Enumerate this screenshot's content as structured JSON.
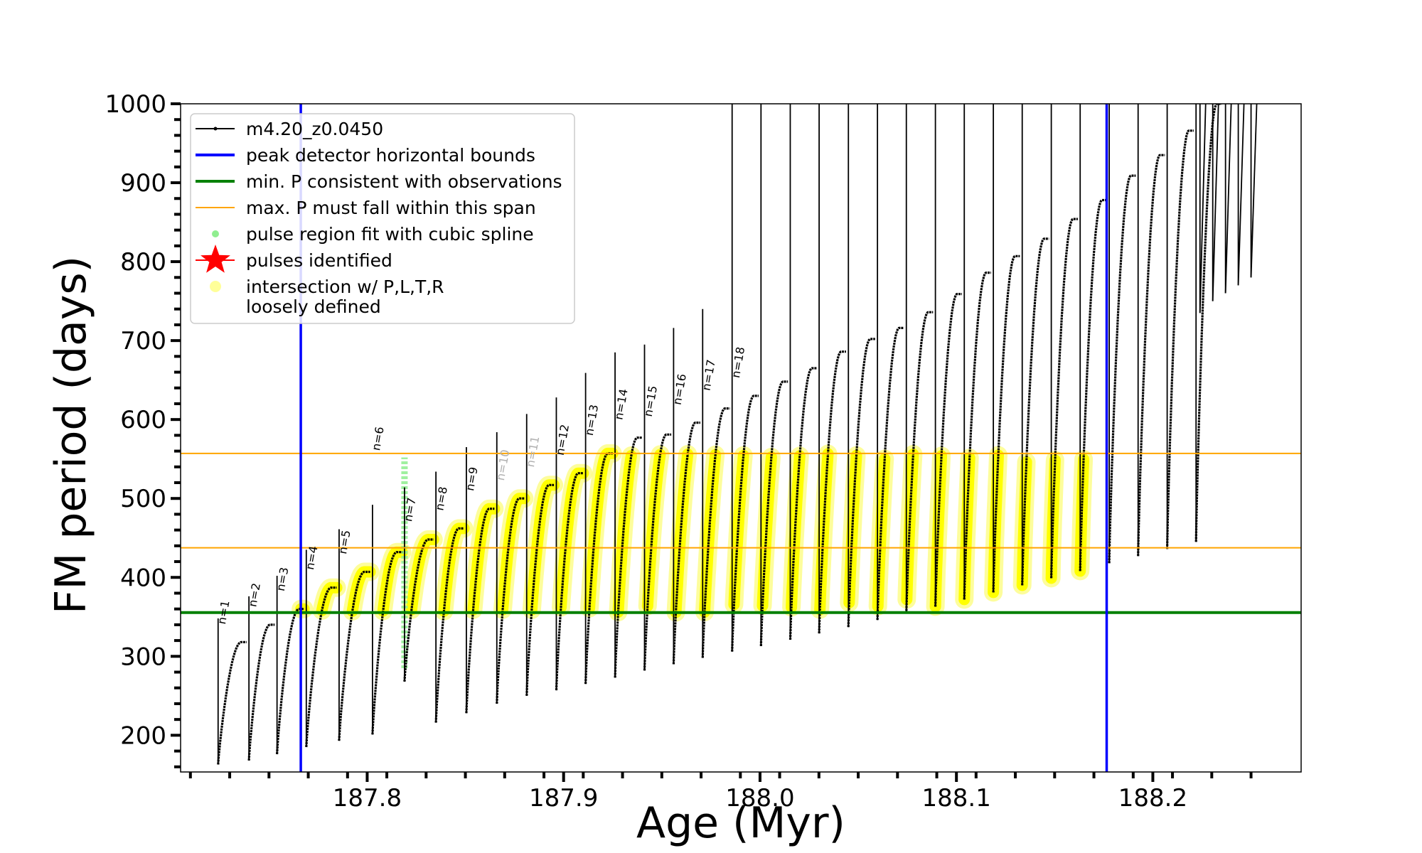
{
  "chart_data": {
    "type": "line",
    "xlabel": "Age (Myr)",
    "ylabel": "FM period (days)",
    "xlim": [
      187.705,
      188.2755
    ],
    "ylim": [
      153.5,
      1000
    ],
    "xticks": [
      187.8,
      187.9,
      188.0,
      188.1,
      188.2
    ],
    "xtick_labels": [
      "187.8",
      "187.9",
      "188.0",
      "188.1",
      "188.2"
    ],
    "yticks": [
      200,
      300,
      400,
      500,
      600,
      700,
      800,
      900,
      1000
    ],
    "ytick_labels": [
      "200",
      "300",
      "400",
      "500",
      "600",
      "700",
      "800",
      "900",
      "1000"
    ],
    "grid": false,
    "legend_position": "top-left",
    "legend": [
      {
        "label": "m4.20_z0.0450",
        "kind": "line-marker",
        "color": "#000000"
      },
      {
        "label": "peak detector horizontal bounds",
        "kind": "line",
        "color": "#0000ff"
      },
      {
        "label": "min. P consistent with observations",
        "kind": "line",
        "color": "#008000"
      },
      {
        "label": "max. P must fall within this span",
        "kind": "thin-line",
        "color": "#ffa500"
      },
      {
        "label": "pulse region fit with cubic spline",
        "kind": "dot",
        "color": "#90ee90"
      },
      {
        "label": "pulses identified",
        "kind": "star",
        "color": "#ff0000"
      },
      {
        "label": "intersection w/ P,L,T,R",
        "label2": "loosely defined",
        "kind": "dot",
        "color": "#ffff99"
      }
    ],
    "vlines": [
      187.7662,
      188.1765
    ],
    "hlines_green": [
      355.5
    ],
    "hlines_orange": [
      437.5,
      557.0
    ],
    "colors": {
      "track": "#000000",
      "vline": "#0000ff",
      "green": "#008000",
      "orange": "#ffa500",
      "yellow": "#ffff00",
      "lightgreen": "#90ee90"
    },
    "pulses": {
      "start": [
        187.7241,
        187.7398,
        187.7541,
        187.769,
        187.7857,
        187.8027,
        187.819,
        187.835,
        187.8505,
        187.866,
        187.8812,
        187.8963,
        187.9112,
        187.9262,
        187.9412,
        187.956,
        187.9708,
        187.9858,
        188.0005,
        188.0154,
        188.0301,
        188.045,
        188.0598,
        188.0745,
        188.0893,
        188.104,
        188.1188,
        188.1335,
        188.1483,
        188.163,
        188.1778,
        188.1925,
        188.2073,
        188.222
      ],
      "minP": [
        163,
        168,
        176,
        185,
        193,
        201,
        268,
        216,
        228,
        240,
        250,
        257,
        265,
        273,
        282,
        290,
        298,
        306,
        313,
        321,
        329,
        337,
        346,
        354,
        363,
        372,
        381,
        390,
        399,
        408,
        418,
        427,
        436,
        445
      ],
      "peakP": [
        318,
        340,
        360,
        387,
        407,
        432,
        448,
        462,
        487,
        500,
        517,
        532,
        557,
        577,
        581,
        596,
        614,
        630,
        648,
        665,
        686,
        702,
        716,
        736,
        759,
        786,
        807,
        829,
        854,
        878,
        909,
        935,
        966,
        1000
      ],
      "nlabels": [
        "n=1",
        "n=2",
        "n=3",
        "n=4",
        "n=5",
        "n=6",
        "n=7",
        "n=8",
        "n=9",
        "n=10",
        "n=11",
        "n=12",
        "n=13",
        "n=14",
        "n=15",
        "n=16",
        "n=17",
        "n=18"
      ]
    },
    "tail": {
      "start": [
        188.224,
        188.2305,
        188.237,
        188.2435,
        188.25
      ],
      "minP": [
        735,
        750,
        760,
        770,
        780
      ]
    }
  }
}
